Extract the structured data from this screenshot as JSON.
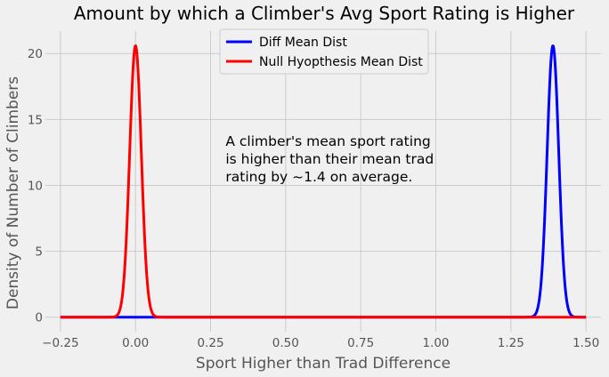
{
  "chart_data": {
    "type": "line",
    "title": "Amount by which a Climber's Avg Sport Rating is Higher",
    "xlabel": "Sport Higher than Trad Difference",
    "ylabel": "Density of Number of Climbers",
    "xlim": [
      -0.3,
      1.55
    ],
    "ylim": [
      -1.1,
      21.7
    ],
    "xticks": [
      -0.25,
      0.0,
      0.25,
      0.5,
      0.75,
      1.0,
      1.25,
      1.5
    ],
    "xtick_labels": [
      "−0.25",
      "0.00",
      "0.25",
      "0.50",
      "0.75",
      "1.00",
      "1.25",
      "1.50"
    ],
    "yticks": [
      0,
      5,
      10,
      15,
      20
    ],
    "ytick_labels": [
      "0",
      "5",
      "10",
      "15",
      "20"
    ],
    "grid": true,
    "legend_position": "top-center",
    "series": [
      {
        "name": "Diff Mean Dist",
        "color": "#0000ff",
        "distribution": "normal",
        "mean": 1.39,
        "std": 0.0194,
        "peak": 20.6,
        "x_range": [
          -0.25,
          1.5
        ]
      },
      {
        "name": "Null Hyopthesis Mean Dist",
        "color": "#ff0000",
        "distribution": "normal",
        "mean": 0.0,
        "std": 0.0194,
        "peak": 20.6,
        "x_range": [
          -0.25,
          1.5
        ]
      }
    ],
    "annotation": {
      "lines": [
        "A climber's mean sport rating",
        "is higher than their mean trad",
        "rating by ~1.4 on average."
      ],
      "anchor": [
        0.3,
        13.0
      ]
    }
  }
}
